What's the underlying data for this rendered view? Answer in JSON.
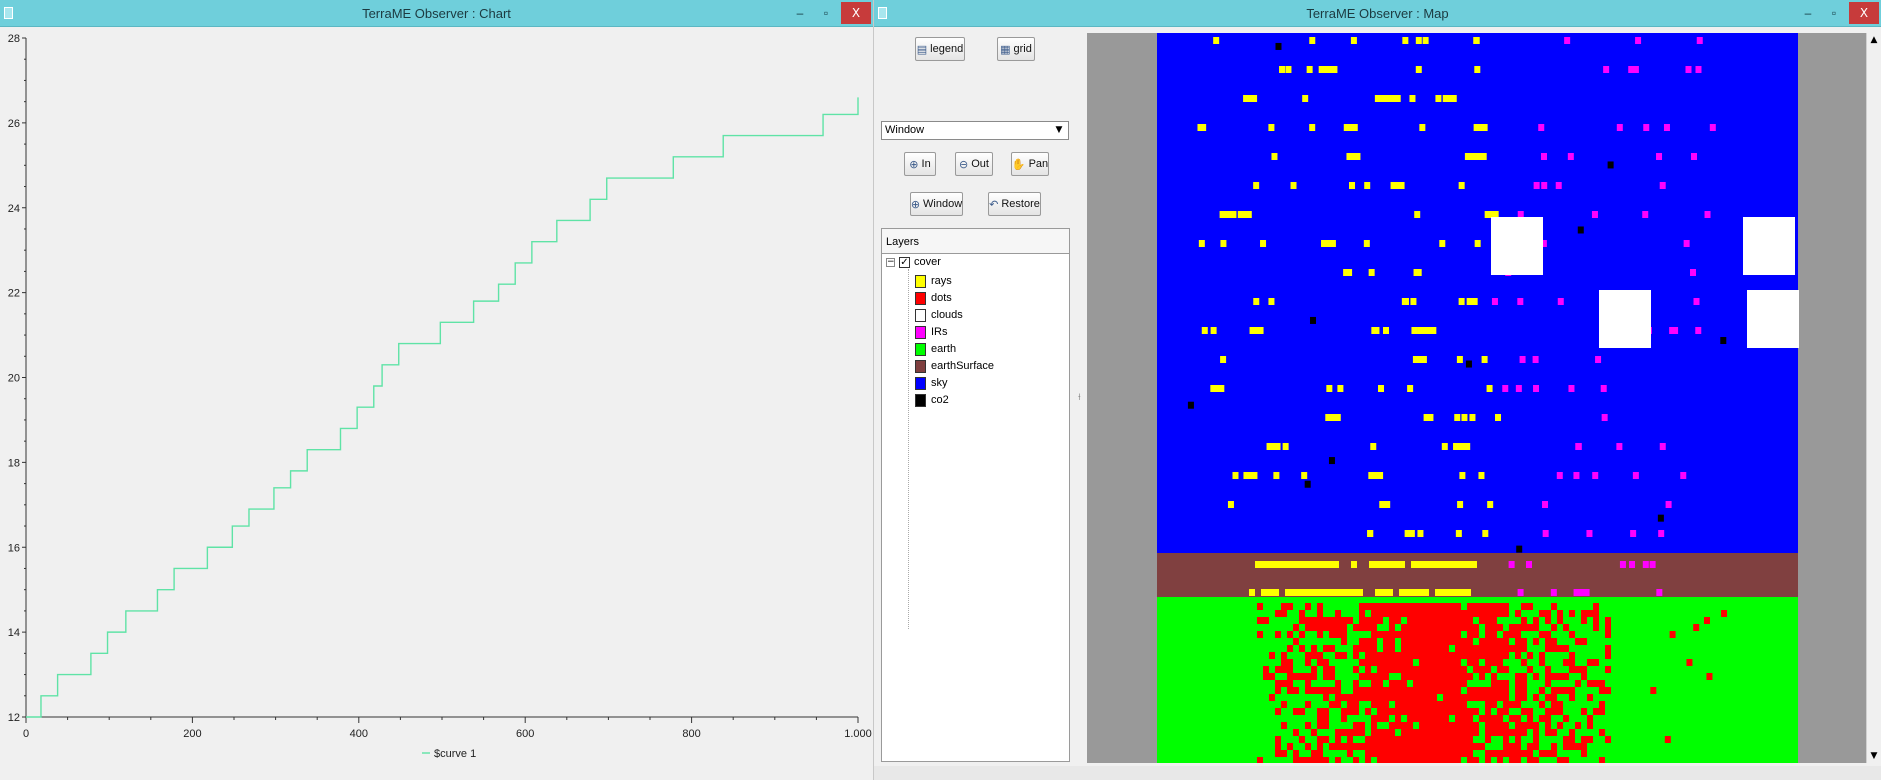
{
  "chart_window": {
    "title": "TerraME Observer : Chart",
    "min_label": "–",
    "max_label": "▫",
    "close_label": "X"
  },
  "map_window": {
    "title": "TerraME Observer : Map",
    "min_label": "–",
    "max_label": "▫",
    "close_label": "X"
  },
  "chart_data": {
    "type": "line",
    "title": "",
    "xlabel": "",
    "ylabel": "",
    "xlim": [
      0,
      1000
    ],
    "ylim": [
      12,
      28
    ],
    "x_ticks": [
      "0",
      "200",
      "400",
      "600",
      "800",
      "1.000"
    ],
    "y_ticks": [
      "12",
      "14",
      "16",
      "18",
      "20",
      "22",
      "24",
      "26",
      "28"
    ],
    "grid": false,
    "legend_position": "bottom-center",
    "line_color": "#5fe3a6",
    "series": [
      {
        "name": "$curve 1",
        "step": true,
        "x": [
          0,
          18,
          38,
          78,
          98,
          120,
          158,
          178,
          218,
          248,
          268,
          298,
          318,
          338,
          378,
          398,
          418,
          428,
          448,
          498,
          538,
          568,
          588,
          608,
          638,
          678,
          698,
          778,
          838,
          958,
          1000
        ],
        "y": [
          12.0,
          12.5,
          13.0,
          13.5,
          14.0,
          14.5,
          15.0,
          15.5,
          16.0,
          16.5,
          16.9,
          17.4,
          17.8,
          18.3,
          18.8,
          19.3,
          19.8,
          20.3,
          20.8,
          21.3,
          21.8,
          22.2,
          22.7,
          23.2,
          23.7,
          24.2,
          24.7,
          25.2,
          25.7,
          26.2,
          26.6
        ]
      }
    ]
  },
  "controls": {
    "legend_label": "legend",
    "grid_label": "grid",
    "select_value": "Window",
    "in_label": "In",
    "out_label": "Out",
    "pan_label": "Pan",
    "window_label": "Window",
    "restore_label": "Restore"
  },
  "layers": {
    "header": "Layers",
    "root_label": "cover",
    "items": [
      {
        "label": "rays",
        "color": "#ffff00"
      },
      {
        "label": "dots",
        "color": "#ff0000"
      },
      {
        "label": "clouds",
        "color": "#ffffff"
      },
      {
        "label": "IRs",
        "color": "#ff00ff"
      },
      {
        "label": "earth",
        "color": "#00ff00"
      },
      {
        "label": "earthSurface",
        "color": "#7f3f3f"
      },
      {
        "label": "sky",
        "color": "#0000ff"
      },
      {
        "label": "co2",
        "color": "#000000"
      }
    ]
  },
  "map_colors": {
    "background": "#999999",
    "sky": "#0000ff",
    "earthSurface": "#804040",
    "earth": "#00ff00",
    "dots": "#ff0000",
    "rays": "#ffff00",
    "IRs": "#ff00ff",
    "clouds": "#ffffff",
    "co2": "#000000"
  }
}
